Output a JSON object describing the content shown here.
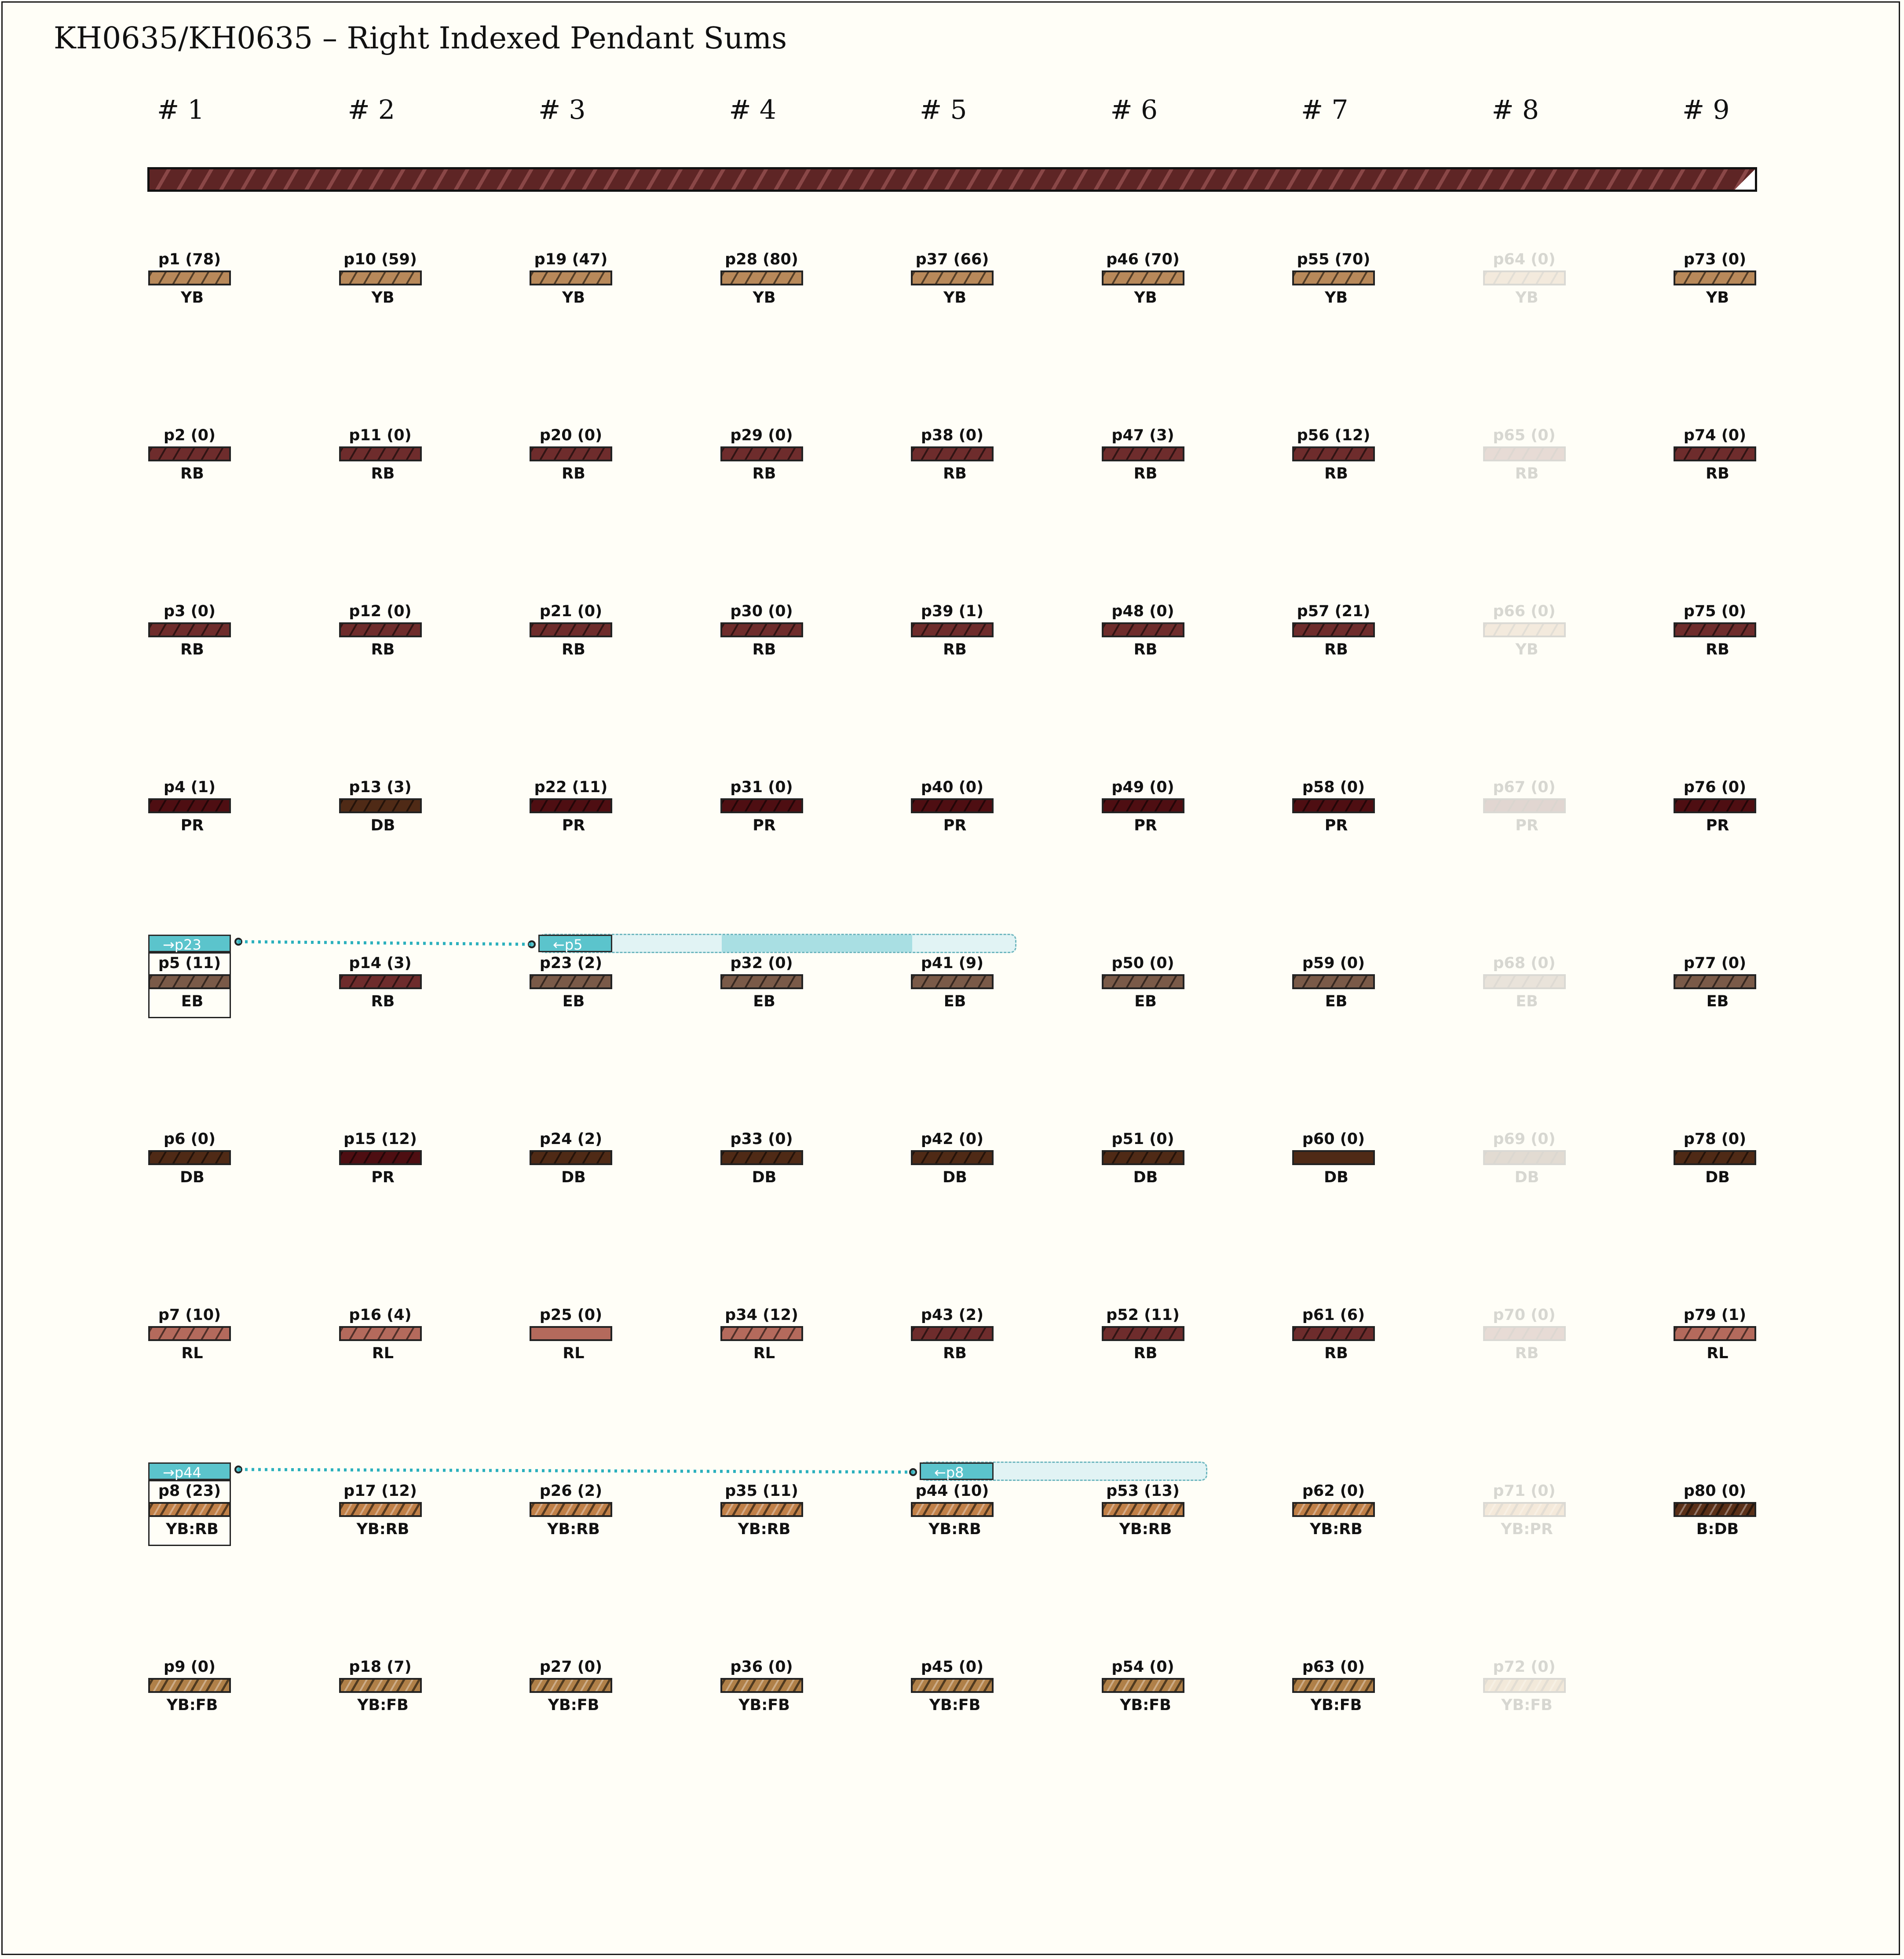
{
  "title": "KH0635/KH0635 – Right Indexed Pendant Sums",
  "columns": [
    "# 1",
    "# 2",
    "# 3",
    "# 4",
    "# 5",
    "# 6",
    "# 7",
    "# 8",
    "# 9"
  ],
  "colors": {
    "YB": "#b8895a",
    "RB": "#6e2c2c",
    "PR": "#4e0e12",
    "DB": "#4f2a16",
    "EB": "#7a5a48",
    "RL": "#b46a5c",
    "YB:RB": "#c08048",
    "YB:FB": "#b08048",
    "YB:PR": "#c08048",
    "B:DB": "#5a3018",
    "link": "#2bb0bd"
  },
  "pendants": [
    {
      "label": "p1 (78)",
      "color": "YB",
      "col": 0,
      "row": 0
    },
    {
      "label": "p2 (0)",
      "color": "RB",
      "col": 0,
      "row": 1
    },
    {
      "label": "p3 (0)",
      "color": "RB",
      "col": 0,
      "row": 2
    },
    {
      "label": "p4 (1)",
      "color": "PR",
      "col": 0,
      "row": 3
    },
    {
      "label": "p5 (11)",
      "color": "EB",
      "col": 0,
      "row": 4
    },
    {
      "label": "p6 (0)",
      "color": "DB",
      "col": 0,
      "row": 5
    },
    {
      "label": "p7 (10)",
      "color": "RL",
      "col": 0,
      "row": 6
    },
    {
      "label": "p8 (23)",
      "color": "YB:RB",
      "col": 0,
      "row": 7
    },
    {
      "label": "p9 (0)",
      "color": "YB:FB",
      "col": 0,
      "row": 8
    },
    {
      "label": "p10 (59)",
      "color": "YB",
      "col": 1,
      "row": 0
    },
    {
      "label": "p11 (0)",
      "color": "RB",
      "col": 1,
      "row": 1
    },
    {
      "label": "p12 (0)",
      "color": "RB",
      "col": 1,
      "row": 2
    },
    {
      "label": "p13 (3)",
      "color": "DB",
      "col": 1,
      "row": 3
    },
    {
      "label": "p14 (3)",
      "color": "RB",
      "col": 1,
      "row": 4
    },
    {
      "label": "p15 (12)",
      "color": "PR",
      "col": 1,
      "row": 5
    },
    {
      "label": "p16 (4)",
      "color": "RL",
      "col": 1,
      "row": 6
    },
    {
      "label": "p17 (12)",
      "color": "YB:RB",
      "col": 1,
      "row": 7
    },
    {
      "label": "p18 (7)",
      "color": "YB:FB",
      "col": 1,
      "row": 8
    },
    {
      "label": "p19 (47)",
      "color": "YB",
      "col": 2,
      "row": 0
    },
    {
      "label": "p20 (0)",
      "color": "RB",
      "col": 2,
      "row": 1
    },
    {
      "label": "p21 (0)",
      "color": "RB",
      "col": 2,
      "row": 2
    },
    {
      "label": "p22 (11)",
      "color": "PR",
      "col": 2,
      "row": 3
    },
    {
      "label": "p23 (2)",
      "color": "EB",
      "col": 2,
      "row": 4
    },
    {
      "label": "p24 (2)",
      "color": "DB",
      "col": 2,
      "row": 5
    },
    {
      "label": "p25 (0)",
      "color": "RL",
      "col": 2,
      "row": 6,
      "solid": true
    },
    {
      "label": "p26 (2)",
      "color": "YB:RB",
      "col": 2,
      "row": 7
    },
    {
      "label": "p27 (0)",
      "color": "YB:FB",
      "col": 2,
      "row": 8
    },
    {
      "label": "p28 (80)",
      "color": "YB",
      "col": 3,
      "row": 0
    },
    {
      "label": "p29 (0)",
      "color": "RB",
      "col": 3,
      "row": 1
    },
    {
      "label": "p30 (0)",
      "color": "RB",
      "col": 3,
      "row": 2
    },
    {
      "label": "p31 (0)",
      "color": "PR",
      "col": 3,
      "row": 3
    },
    {
      "label": "p32 (0)",
      "color": "EB",
      "col": 3,
      "row": 4
    },
    {
      "label": "p33 (0)",
      "color": "DB",
      "col": 3,
      "row": 5
    },
    {
      "label": "p34 (12)",
      "color": "RL",
      "col": 3,
      "row": 6
    },
    {
      "label": "p35 (11)",
      "color": "YB:RB",
      "col": 3,
      "row": 7
    },
    {
      "label": "p36 (0)",
      "color": "YB:FB",
      "col": 3,
      "row": 8
    },
    {
      "label": "p37 (66)",
      "color": "YB",
      "col": 4,
      "row": 0
    },
    {
      "label": "p38 (0)",
      "color": "RB",
      "col": 4,
      "row": 1
    },
    {
      "label": "p39 (1)",
      "color": "RB",
      "col": 4,
      "row": 2
    },
    {
      "label": "p40 (0)",
      "color": "PR",
      "col": 4,
      "row": 3
    },
    {
      "label": "p41 (9)",
      "color": "EB",
      "col": 4,
      "row": 4
    },
    {
      "label": "p42 (0)",
      "color": "DB",
      "col": 4,
      "row": 5
    },
    {
      "label": "p43 (2)",
      "color": "RB",
      "col": 4,
      "row": 6
    },
    {
      "label": "p44 (10)",
      "color": "YB:RB",
      "col": 4,
      "row": 7
    },
    {
      "label": "p45 (0)",
      "color": "YB:FB",
      "col": 4,
      "row": 8
    },
    {
      "label": "p46 (70)",
      "color": "YB",
      "col": 5,
      "row": 0
    },
    {
      "label": "p47 (3)",
      "color": "RB",
      "col": 5,
      "row": 1
    },
    {
      "label": "p48 (0)",
      "color": "RB",
      "col": 5,
      "row": 2
    },
    {
      "label": "p49 (0)",
      "color": "PR",
      "col": 5,
      "row": 3
    },
    {
      "label": "p50 (0)",
      "color": "EB",
      "col": 5,
      "row": 4
    },
    {
      "label": "p51 (0)",
      "color": "DB",
      "col": 5,
      "row": 5
    },
    {
      "label": "p52 (11)",
      "color": "RB",
      "col": 5,
      "row": 6
    },
    {
      "label": "p53 (13)",
      "color": "YB:RB",
      "col": 5,
      "row": 7
    },
    {
      "label": "p54 (0)",
      "color": "YB:FB",
      "col": 5,
      "row": 8
    },
    {
      "label": "p55 (70)",
      "color": "YB",
      "col": 6,
      "row": 0
    },
    {
      "label": "p56 (12)",
      "color": "RB",
      "col": 6,
      "row": 1
    },
    {
      "label": "p57 (21)",
      "color": "RB",
      "col": 6,
      "row": 2
    },
    {
      "label": "p58 (0)",
      "color": "PR",
      "col": 6,
      "row": 3
    },
    {
      "label": "p59 (0)",
      "color": "EB",
      "col": 6,
      "row": 4
    },
    {
      "label": "p60 (0)",
      "color": "DB",
      "col": 6,
      "row": 5,
      "solid": true
    },
    {
      "label": "p61 (6)",
      "color": "RB",
      "col": 6,
      "row": 6
    },
    {
      "label": "p62 (0)",
      "color": "YB:RB",
      "col": 6,
      "row": 7
    },
    {
      "label": "p63 (0)",
      "color": "YB:FB",
      "col": 6,
      "row": 8
    },
    {
      "label": "p64 (0)",
      "color": "YB",
      "col": 7,
      "row": 0,
      "ghost": true
    },
    {
      "label": "p65 (0)",
      "color": "RB",
      "col": 7,
      "row": 1,
      "ghost": true
    },
    {
      "label": "p66 (0)",
      "color": "YB",
      "col": 7,
      "row": 2,
      "ghost": true
    },
    {
      "label": "p67 (0)",
      "color": "PR",
      "col": 7,
      "row": 3,
      "ghost": true
    },
    {
      "label": "p68 (0)",
      "color": "EB",
      "col": 7,
      "row": 4,
      "ghost": true
    },
    {
      "label": "p69 (0)",
      "color": "DB",
      "col": 7,
      "row": 5,
      "ghost": true
    },
    {
      "label": "p70 (0)",
      "color": "RB",
      "col": 7,
      "row": 6,
      "ghost": true
    },
    {
      "label": "p71 (0)",
      "color": "YB:PR",
      "col": 7,
      "row": 7,
      "ghost": true
    },
    {
      "label": "p72 (0)",
      "color": "YB:FB",
      "col": 7,
      "row": 8,
      "ghost": true
    },
    {
      "label": "p73 (0)",
      "color": "YB",
      "col": 8,
      "row": 0
    },
    {
      "label": "p74 (0)",
      "color": "RB",
      "col": 8,
      "row": 1
    },
    {
      "label": "p75 (0)",
      "color": "RB",
      "col": 8,
      "row": 2
    },
    {
      "label": "p76 (0)",
      "color": "PR",
      "col": 8,
      "row": 3
    },
    {
      "label": "p77 (0)",
      "color": "EB",
      "col": 8,
      "row": 4
    },
    {
      "label": "p78 (0)",
      "color": "DB",
      "col": 8,
      "row": 5
    },
    {
      "label": "p79 (1)",
      "color": "RL",
      "col": 8,
      "row": 6
    },
    {
      "label": "p80 (0)",
      "color": "B:DB",
      "col": 8,
      "row": 7
    }
  ],
  "links": [
    {
      "source": "p5 (11)",
      "src_tag": "→p23",
      "dst_tag": "←p5",
      "row": 4,
      "from_col": 0,
      "to_col": 2,
      "span_to_col": 4
    },
    {
      "source": "p8 (23)",
      "src_tag": "→p44",
      "dst_tag": "←p8",
      "row": 7,
      "from_col": 0,
      "to_col": 4,
      "span_to_col": 5
    }
  ]
}
